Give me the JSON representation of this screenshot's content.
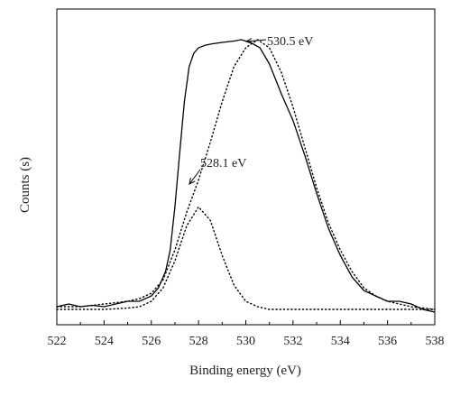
{
  "chart_data": {
    "type": "line",
    "title": "",
    "xlabel": "Binding energy (eV)",
    "ylabel": "Counts (s)",
    "xlim": [
      522,
      538
    ],
    "ylim": [
      0,
      100
    ],
    "x_ticks": [
      522,
      524,
      526,
      528,
      530,
      532,
      534,
      536,
      538
    ],
    "x_tick_labels": [
      "522",
      "524",
      "526",
      "528",
      "530",
      "532",
      "534",
      "536",
      "538"
    ],
    "y_ticks_labeled": false,
    "grid": false,
    "legend": "none",
    "series": [
      {
        "style": "solid",
        "color": "#000000",
        "x": [
          522,
          522.5,
          523,
          523.5,
          524,
          524.5,
          525,
          525.5,
          526,
          526.3,
          526.6,
          526.8,
          527,
          527.2,
          527.4,
          527.6,
          527.8,
          528,
          528.3,
          528.6,
          529,
          529.5,
          529.8,
          530.2,
          530.6,
          531,
          531.5,
          532,
          532.5,
          533,
          533.5,
          534,
          534.5,
          535,
          535.5,
          536,
          536.5,
          537,
          537.5,
          538
        ],
        "y": [
          1,
          2,
          1,
          1.5,
          1,
          2,
          3,
          3,
          5,
          8,
          14,
          22,
          38,
          58,
          77,
          90,
          95,
          97,
          98,
          98.5,
          99,
          99.5,
          100,
          99,
          97,
          91,
          80,
          70,
          57,
          43,
          30,
          20,
          12,
          7,
          5,
          3,
          3,
          2,
          0,
          -1
        ]
      },
      {
        "style": "dotted",
        "color": "#000000",
        "x": [
          522,
          523,
          524,
          525,
          525.5,
          526,
          526.5,
          527,
          527.5,
          528,
          528.5,
          529,
          529.5,
          530,
          530.5,
          531,
          531.5,
          532,
          532.5,
          533,
          533.5,
          534,
          534.5,
          535,
          535.5,
          536,
          537,
          538
        ],
        "y": [
          1,
          1,
          2,
          3,
          4,
          6,
          11,
          22,
          36,
          48,
          62,
          77,
          90,
          97,
          100,
          97,
          88,
          75,
          60,
          45,
          32,
          22,
          14,
          8,
          5,
          3,
          1,
          0
        ]
      },
      {
        "style": "dotted",
        "color": "#000000",
        "x": [
          522,
          524,
          525,
          525.5,
          526,
          526.5,
          527,
          527.5,
          528,
          528.5,
          529,
          529.5,
          530,
          530.5,
          531,
          532,
          534,
          536,
          538
        ],
        "y": [
          0,
          0,
          0.5,
          1,
          3,
          8,
          18,
          31,
          38,
          33,
          20,
          9,
          3,
          1,
          0,
          0,
          0,
          0,
          0
        ]
      }
    ],
    "annotations": [
      {
        "text": "530.5 eV",
        "x": 530.5,
        "y": 100
      },
      {
        "text": "528.1 eV",
        "x": 528.1,
        "y": 38
      }
    ]
  }
}
